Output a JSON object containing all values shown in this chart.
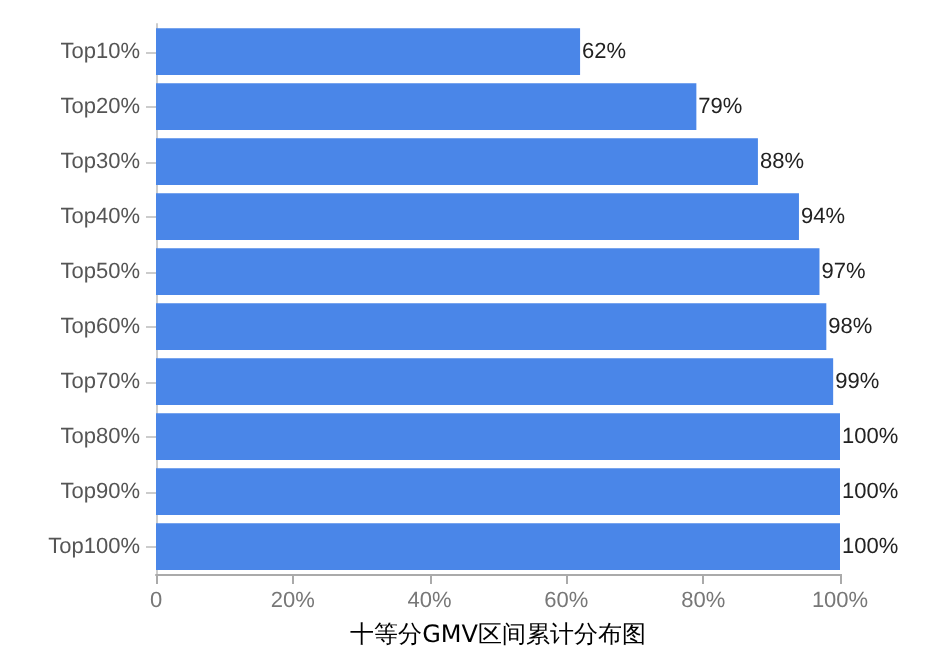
{
  "chart_data": {
    "type": "bar",
    "orientation": "horizontal",
    "xlabel": "十等分GMV区间累计分布图",
    "categories": [
      "Top10%",
      "Top20%",
      "Top30%",
      "Top40%",
      "Top50%",
      "Top60%",
      "Top70%",
      "Top80%",
      "Top90%",
      "Top100%"
    ],
    "values": [
      62,
      79,
      88,
      94,
      97,
      98,
      99,
      100,
      100,
      100
    ],
    "value_labels": [
      "62%",
      "79%",
      "88%",
      "94%",
      "97%",
      "98%",
      "99%",
      "100%",
      "100%",
      "100%"
    ],
    "color": "#4a86e8",
    "xlim": [
      0,
      100
    ],
    "xticks": [
      {
        "value": 0,
        "label": "0"
      },
      {
        "value": 20,
        "label": "20%"
      },
      {
        "value": 40,
        "label": "40%"
      },
      {
        "value": 60,
        "label": "60%"
      },
      {
        "value": 80,
        "label": "80%"
      },
      {
        "value": 100,
        "label": "100%"
      }
    ],
    "grid": false
  }
}
